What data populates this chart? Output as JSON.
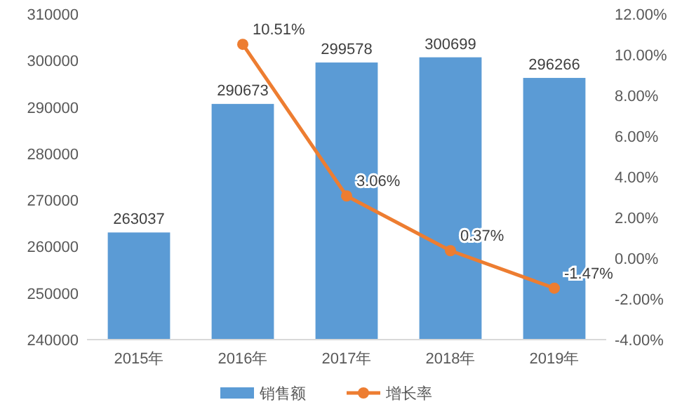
{
  "chart_data": {
    "type": "bar",
    "categories": [
      "2015年",
      "2016年",
      "2017年",
      "2018年",
      "2019年"
    ],
    "series": [
      {
        "name": "销售额",
        "color": "#5b9bd5",
        "values": [
          263037,
          290673,
          299578,
          300699,
          296266
        ],
        "value_labels": [
          "263037",
          "290673",
          "299578",
          "300699",
          "296266"
        ]
      },
      {
        "name": "增长率",
        "type": "line",
        "axis": "y2",
        "color": "#ed7d31",
        "marker": "circle",
        "values": [
          null,
          10.51,
          3.06,
          0.37,
          -1.47
        ],
        "value_labels": [
          null,
          "10.51%",
          "3.06%",
          "0.37%",
          "-1.47%"
        ]
      }
    ],
    "ylim": [
      240000,
      310000
    ],
    "yticks": [
      240000,
      250000,
      260000,
      270000,
      280000,
      290000,
      300000,
      310000
    ],
    "y2lim": [
      -4,
      12
    ],
    "y2ticks": [
      {
        "value": -4,
        "label": "-4.00%"
      },
      {
        "value": -2,
        "label": "-2.00%"
      },
      {
        "value": 0,
        "label": "0.00%"
      },
      {
        "value": 2,
        "label": "2.00%"
      },
      {
        "value": 4,
        "label": "4.00%"
      },
      {
        "value": 6,
        "label": "6.00%"
      },
      {
        "value": 8,
        "label": "8.00%"
      },
      {
        "value": 10,
        "label": "10.00%"
      },
      {
        "value": 12,
        "label": "12.00%"
      }
    ],
    "legend": "bottom"
  }
}
